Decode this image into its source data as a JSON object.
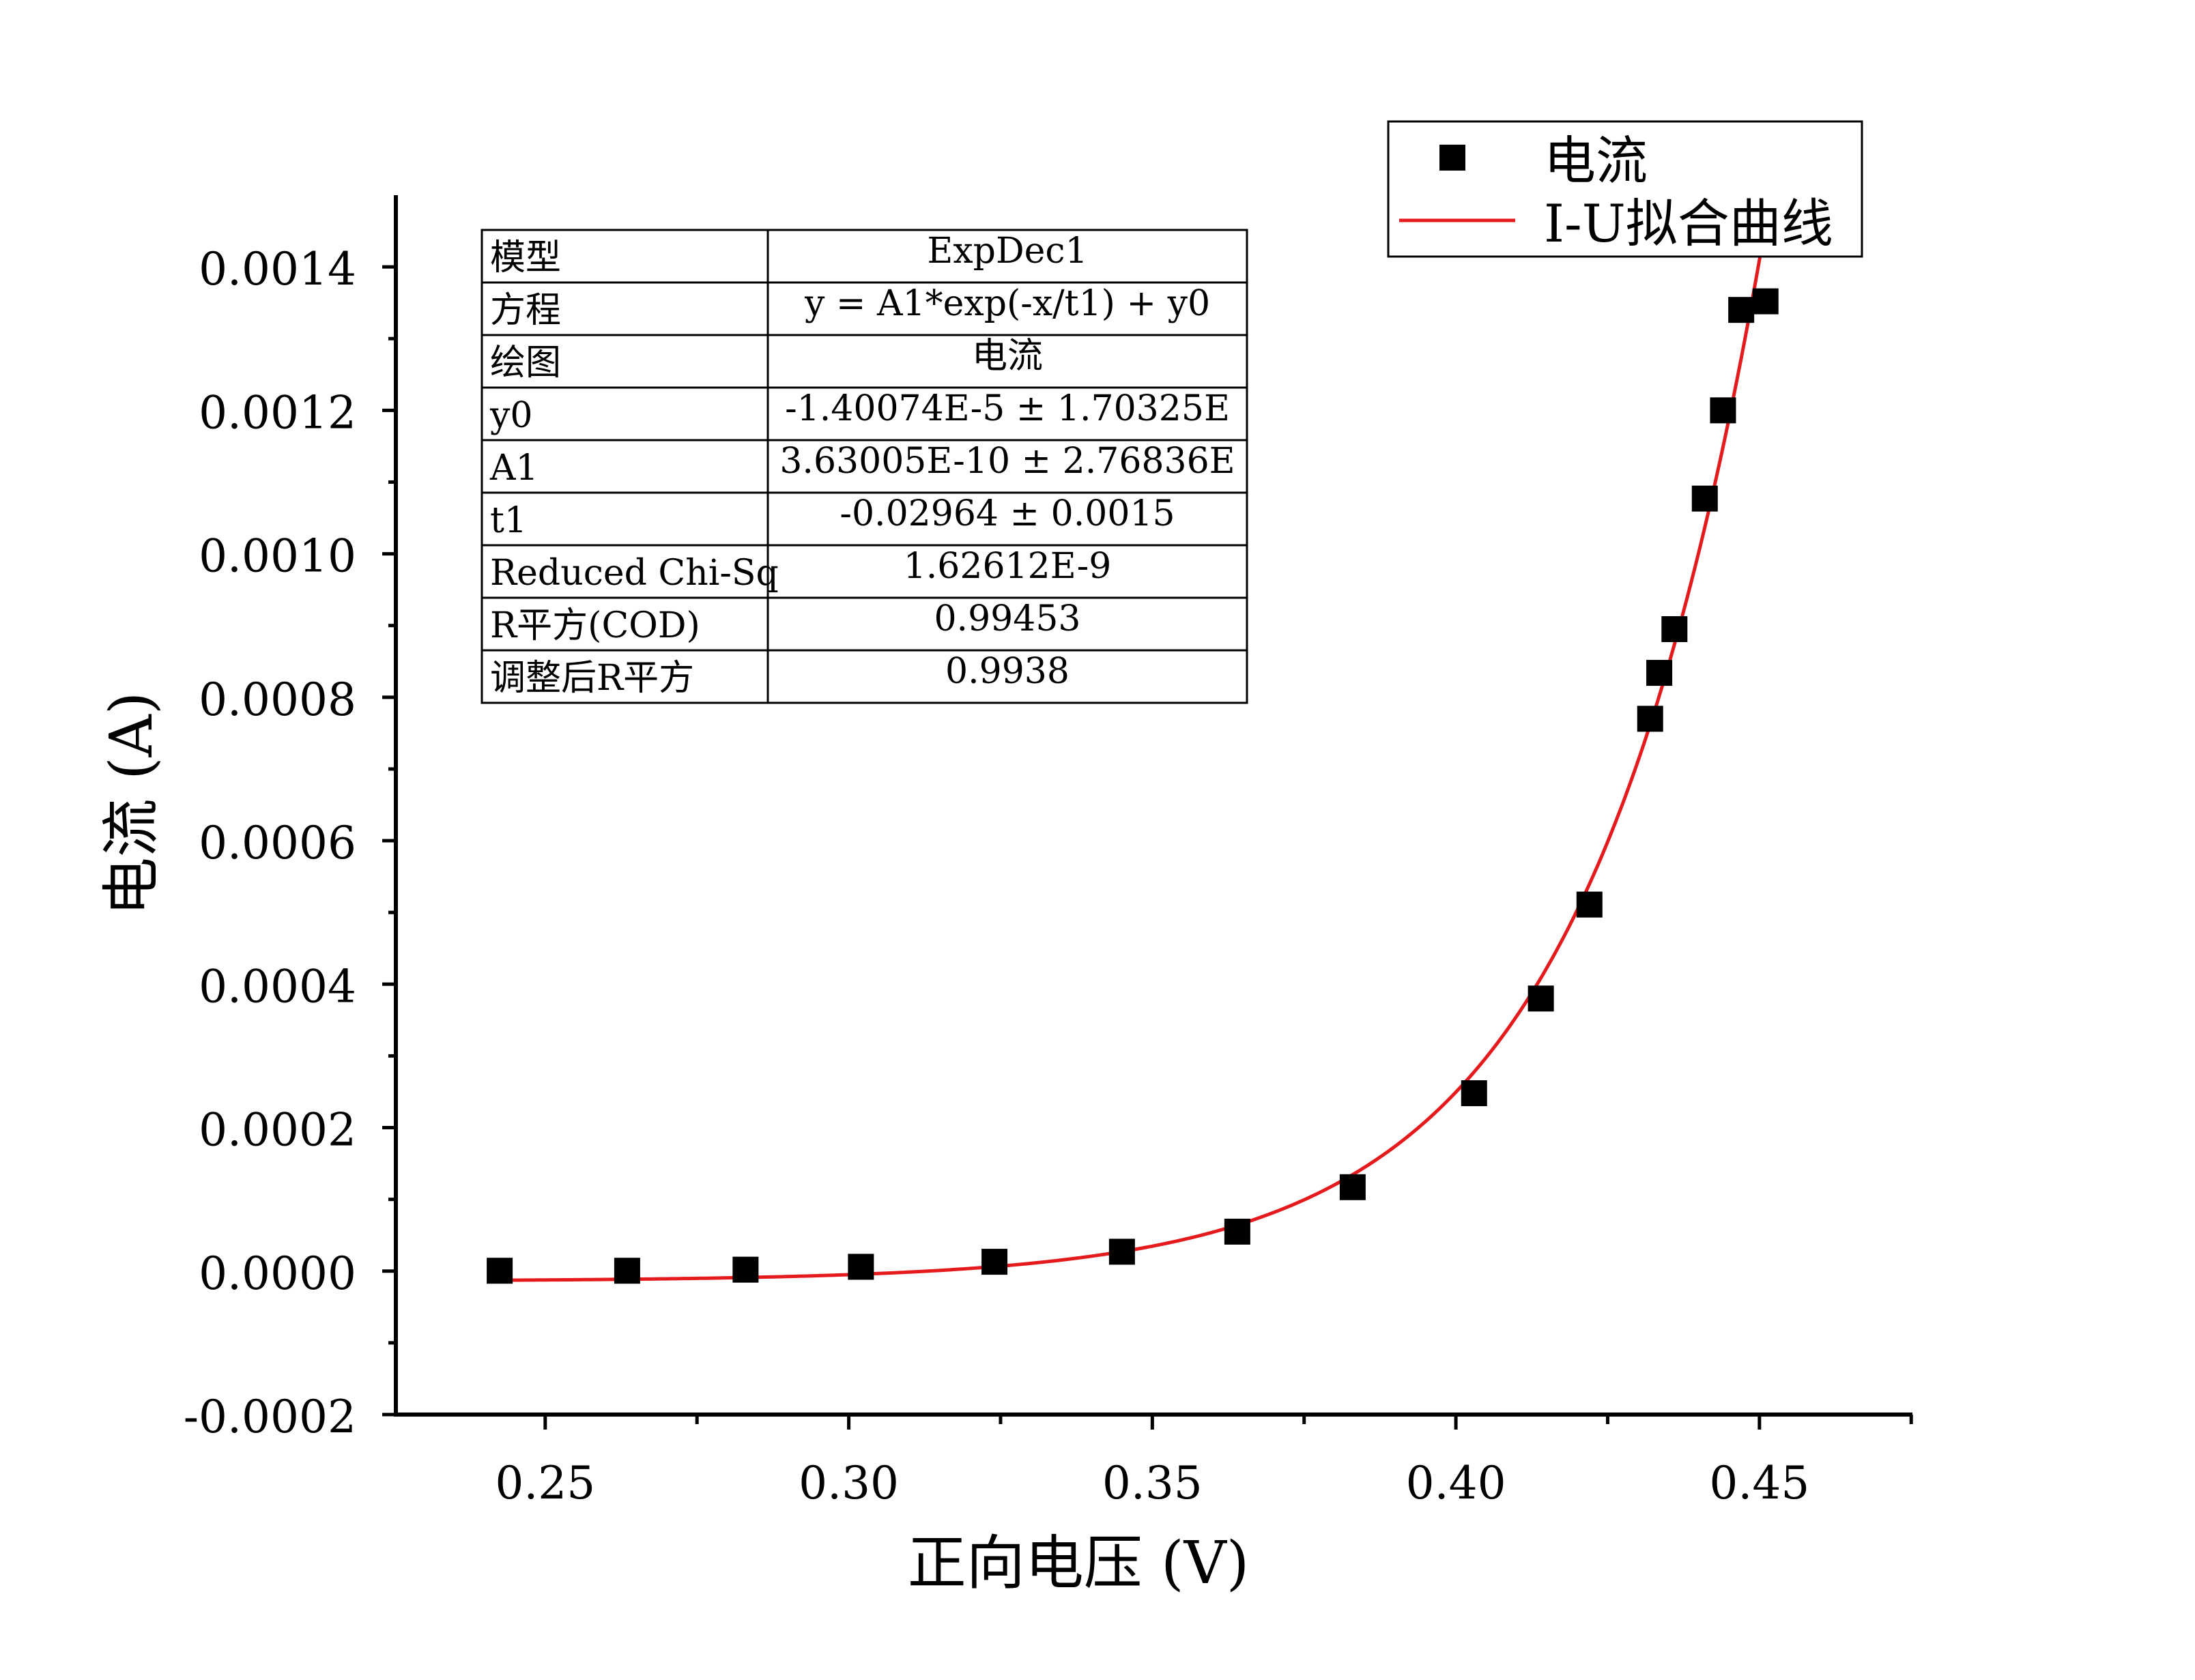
{
  "chart_data": {
    "type": "scatter",
    "title": "",
    "xlabel": "正向电压 (V)",
    "ylabel": "电流 (A)",
    "xlim": [
      0.2254,
      0.4752
    ],
    "ylim": [
      -0.0002,
      0.0015
    ],
    "x_ticks": [
      0.25,
      0.3,
      0.35,
      0.4,
      0.45
    ],
    "x_tick_labels": [
      "0.25",
      "0.30",
      "0.35",
      "0.40",
      "0.45"
    ],
    "y_ticks": [
      -0.0002,
      0.0,
      0.0002,
      0.0004,
      0.0006,
      0.0008,
      0.001,
      0.0012,
      0.0014
    ],
    "y_tick_labels": [
      "-0.0002",
      "0.0000",
      "0.0002",
      "0.0004",
      "0.0006",
      "0.0008",
      "0.0010",
      "0.0012",
      "0.0014"
    ],
    "grid": false,
    "legend_position": "top-right",
    "series": [
      {
        "name": "电流",
        "kind": "scatter",
        "marker": "square",
        "color": "#000000",
        "x": [
          0.2425,
          0.2635,
          0.283,
          0.302,
          0.324,
          0.345,
          0.364,
          0.383,
          0.403,
          0.414,
          0.422,
          0.432,
          0.4335,
          0.436,
          0.441,
          0.444,
          0.447,
          0.451
        ],
        "y": [
          5e-07,
          5e-07,
          2e-06,
          6e-06,
          1.3e-05,
          2.7e-05,
          5.5e-05,
          0.000117,
          0.000248,
          0.00038,
          0.000511,
          0.00077,
          0.000834,
          0.000895,
          0.001077,
          0.0012,
          0.00134,
          0.001352
        ]
      },
      {
        "name": "I-U拟合曲线",
        "kind": "line",
        "color": "#e41a1c",
        "model": {
          "y0": -1.40074e-05,
          "A1": 3.63005e-10,
          "t1": -0.02964,
          "x_start": 0.2425,
          "x_end": 0.4505
        }
      }
    ],
    "fit_table": {
      "rows": [
        [
          "模型",
          "ExpDec1"
        ],
        [
          "方程",
          "y = A1*exp(-x/t1) + y0"
        ],
        [
          "绘图",
          "电流"
        ],
        [
          "y0",
          "-1.40074E-5 ± 1.70325E"
        ],
        [
          "A1",
          "3.63005E-10 ± 2.76836E"
        ],
        [
          "t1",
          "-0.02964 ± 0.0015"
        ],
        [
          "Reduced Chi-Sq",
          "1.62612E-9"
        ],
        [
          "R平方(COD)",
          "0.99453"
        ],
        [
          "调整后R平方",
          "0.9938"
        ]
      ]
    }
  }
}
